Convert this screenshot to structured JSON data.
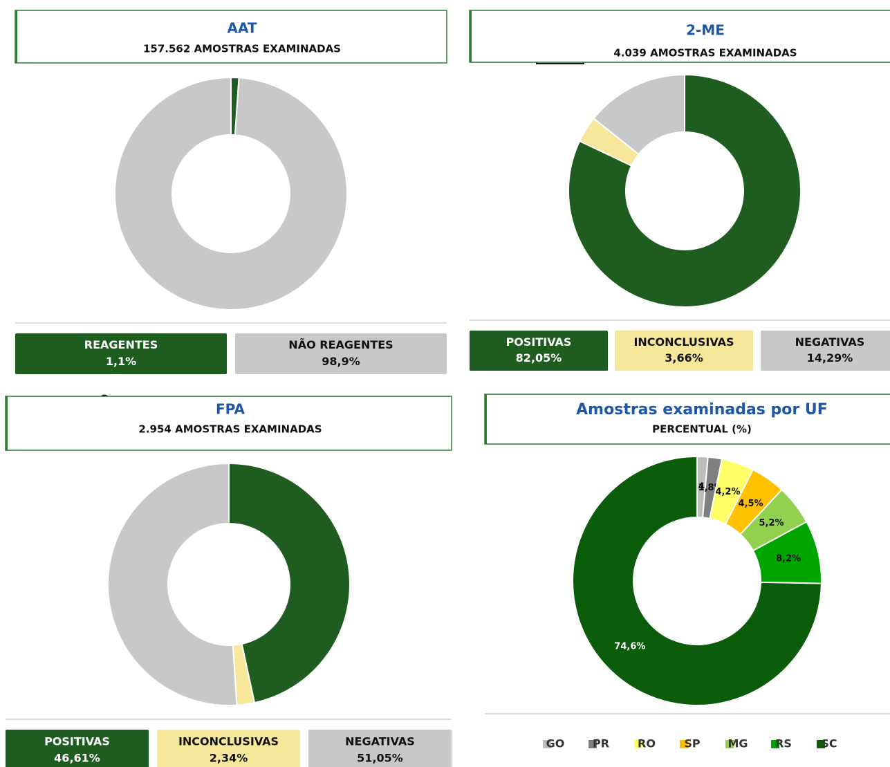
{
  "chart_data": [
    {
      "type": "pie",
      "title": "AAT",
      "subtitle": "157.562 AMOSTRAS EXAMINADAS",
      "categories": [
        "REAGENTES",
        "NÃO REAGENTES"
      ],
      "values": [
        1.1,
        98.9
      ],
      "value_labels": [
        "1,1%",
        "98,9%"
      ],
      "colors": [
        "#1e5c20",
        "#c8c8c8"
      ]
    },
    {
      "type": "pie",
      "title": "2-ME",
      "subtitle": "4.039 AMOSTRAS EXAMINADAS",
      "categories": [
        "POSITIVAS",
        "INCONCLUSIVAS",
        "NEGATIVAS"
      ],
      "values": [
        82.05,
        3.66,
        14.29
      ],
      "value_labels": [
        "82,05%",
        "3,66%",
        "14,29%"
      ],
      "colors": [
        "#1e5c20",
        "#f7e79a",
        "#c8c8c8"
      ]
    },
    {
      "type": "pie",
      "title": "FPA",
      "subtitle": "2.954 AMOSTRAS EXAMINADAS",
      "categories": [
        "POSITIVAS",
        "INCONCLUSIVAS",
        "NEGATIVAS"
      ],
      "values": [
        46.61,
        2.34,
        51.05
      ],
      "value_labels": [
        "46,61%",
        "2,34%",
        "51,05%"
      ],
      "colors": [
        "#1e5c20",
        "#f7e79a",
        "#c8c8c8"
      ]
    },
    {
      "type": "pie",
      "title": "Amostras examinadas por UF",
      "subtitle": "PERCENTUAL (%)",
      "categories": [
        "GO",
        "PR",
        "RO",
        "SP",
        "MG",
        "RS",
        "SC"
      ],
      "values": [
        1.4,
        1.8,
        4.2,
        4.5,
        5.2,
        8.2,
        74.6
      ],
      "value_labels": [
        "1,4%",
        "1,8%",
        "4,2%",
        "4,5%",
        "5,2%",
        "8,2%",
        "74,6%"
      ],
      "colors": [
        "#bdbdbd",
        "#7f7f7f",
        "#ffff66",
        "#ffc000",
        "#92d050",
        "#00a600",
        "#0b5c0b"
      ]
    }
  ]
}
